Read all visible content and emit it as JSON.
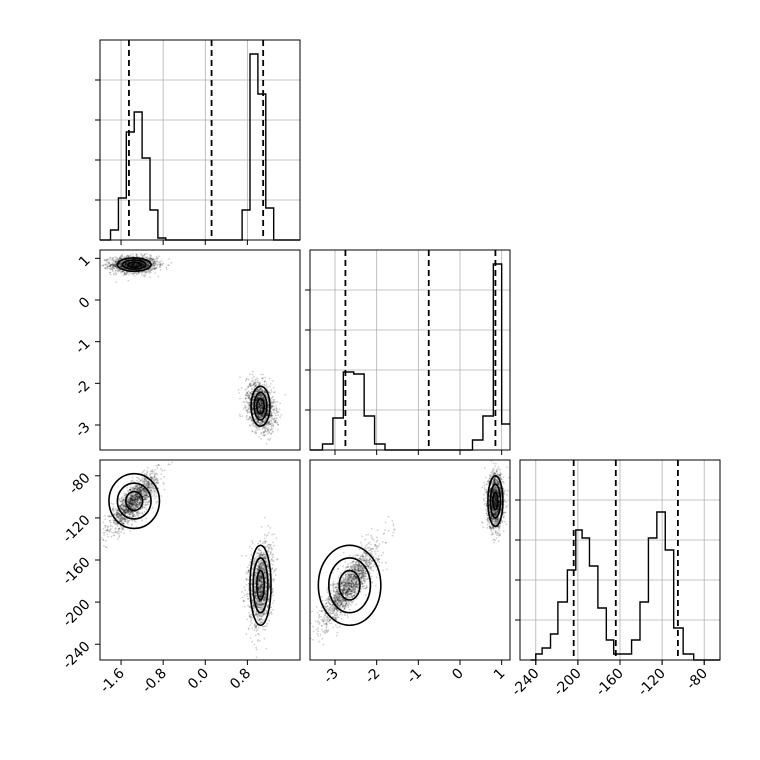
{
  "chart_data": [
    {
      "type": "histogram",
      "panel": "diag-1",
      "xlim": [
        -2.0,
        1.8
      ],
      "ylim": [
        0,
        1
      ],
      "xticks": [
        -1.6,
        -0.8,
        0.0,
        0.8
      ],
      "xtick_labels": [
        "-1.6",
        "-0.8",
        "0.0",
        "0.8"
      ],
      "bins": [
        [
          -2.0,
          0.0
        ],
        [
          -1.8,
          0.05
        ],
        [
          -1.65,
          0.21
        ],
        [
          -1.5,
          0.54
        ],
        [
          -1.35,
          0.64
        ],
        [
          -1.2,
          0.41
        ],
        [
          -1.05,
          0.15
        ],
        [
          -0.9,
          0.01
        ],
        [
          -0.75,
          0.0
        ],
        [
          0.55,
          0.0
        ],
        [
          0.7,
          0.15
        ],
        [
          0.85,
          0.93
        ],
        [
          1.0,
          0.73
        ],
        [
          1.15,
          0.16
        ],
        [
          1.3,
          0.0
        ],
        [
          1.8,
          0.0
        ]
      ],
      "quantiles": [
        -1.45,
        0.12,
        1.1
      ]
    },
    {
      "type": "histogram",
      "panel": "diag-2",
      "xlim": [
        -3.6,
        1.2
      ],
      "ylim": [
        0,
        1
      ],
      "xticks": [
        -3,
        -2,
        -1,
        0,
        1
      ],
      "xtick_labels": [
        "-3",
        "-2",
        "-1",
        "0",
        "1"
      ],
      "bins": [
        [
          -3.6,
          0.0
        ],
        [
          -3.3,
          0.03
        ],
        [
          -3.05,
          0.16
        ],
        [
          -2.8,
          0.39
        ],
        [
          -2.55,
          0.38
        ],
        [
          -2.3,
          0.17
        ],
        [
          -2.05,
          0.03
        ],
        [
          -1.8,
          0.0
        ],
        [
          0.05,
          0.0
        ],
        [
          0.3,
          0.05
        ],
        [
          0.55,
          0.17
        ],
        [
          0.8,
          0.93
        ],
        [
          1.0,
          0.13
        ],
        [
          1.2,
          0.13
        ]
      ],
      "quantiles": [
        -2.75,
        -0.75,
        0.85
      ]
    },
    {
      "type": "histogram",
      "panel": "diag-3",
      "xlim": [
        -255,
        -65
      ],
      "ylim": [
        0,
        1
      ],
      "xticks": [
        -240,
        -200,
        -160,
        -120,
        -80
      ],
      "xtick_labels": [
        "-240",
        "-200",
        "-160",
        "-120",
        "-80"
      ],
      "bins": [
        [
          -245,
          0.0
        ],
        [
          -240,
          0.03
        ],
        [
          -234,
          0.06
        ],
        [
          -226,
          0.13
        ],
        [
          -219,
          0.29
        ],
        [
          -210,
          0.45
        ],
        [
          -202,
          0.65
        ],
        [
          -196,
          0.61
        ],
        [
          -189,
          0.47
        ],
        [
          -181,
          0.26
        ],
        [
          -173,
          0.1
        ],
        [
          -166,
          0.03
        ],
        [
          -157,
          0.03
        ],
        [
          -149,
          0.1
        ],
        [
          -141,
          0.29
        ],
        [
          -133,
          0.61
        ],
        [
          -125,
          0.74
        ],
        [
          -117,
          0.55
        ],
        [
          -109,
          0.16
        ],
        [
          -100,
          0.03
        ],
        [
          -90,
          0.0
        ],
        [
          -65,
          0.0
        ]
      ],
      "quantiles": [
        -204,
        -164,
        -105
      ]
    },
    {
      "type": "scatter",
      "panel": "joint-2-1",
      "xlim": [
        -2.0,
        1.8
      ],
      "ylim": [
        -3.6,
        1.2
      ],
      "yticks": [
        1,
        0,
        -1,
        -2,
        -3
      ],
      "ytick_labels": [
        "1",
        "0",
        "-1",
        "-2",
        "-3"
      ],
      "clusters": [
        {
          "cx": -1.35,
          "cy": 0.85,
          "sx": 0.22,
          "sy": 0.1,
          "rho": 0.0,
          "n": 1500
        },
        {
          "cx": 1.05,
          "cy": -2.55,
          "sx": 0.13,
          "sy": 0.28,
          "rho": -0.3,
          "n": 1500
        }
      ],
      "contours": [
        {
          "cx": -1.35,
          "cy": 0.85,
          "rx": [
            0.32,
            0.22,
            0.12
          ],
          "ry": [
            0.16,
            0.11,
            0.06
          ]
        },
        {
          "cx": 1.05,
          "cy": -2.55,
          "rx": [
            0.18,
            0.12,
            0.07
          ],
          "ry": [
            0.48,
            0.33,
            0.18
          ]
        }
      ]
    },
    {
      "type": "scatter",
      "panel": "joint-3-1",
      "xlim": [
        -2.0,
        1.8
      ],
      "ylim": [
        -255,
        -65
      ],
      "yticks": [
        -80,
        -120,
        -160,
        -200,
        -240
      ],
      "ytick_labels": [
        "-80",
        "-120",
        "-160",
        "-200",
        "-240"
      ],
      "clusters": [
        {
          "cx": -1.35,
          "cy": -104,
          "sx": 0.22,
          "sy": 13,
          "rho": 0.8,
          "n": 1500
        },
        {
          "cx": 1.05,
          "cy": -184,
          "sx": 0.11,
          "sy": 19,
          "rho": 0.2,
          "n": 1500
        }
      ],
      "contours": [
        {
          "cx": -1.35,
          "cy": -104,
          "rx": [
            0.48,
            0.32,
            0.16
          ],
          "ry": [
            26,
            17,
            9
          ]
        },
        {
          "cx": 1.05,
          "cy": -184,
          "rx": [
            0.2,
            0.14,
            0.07
          ],
          "ry": [
            38,
            26,
            14
          ]
        }
      ]
    },
    {
      "type": "scatter",
      "panel": "joint-3-2",
      "xlim": [
        -3.6,
        1.2
      ],
      "ylim": [
        -255,
        -65
      ],
      "clusters": [
        {
          "cx": -2.65,
          "cy": -184,
          "sx": 0.33,
          "sy": 19,
          "rho": 0.85,
          "n": 1500
        },
        {
          "cx": 0.85,
          "cy": -104,
          "sx": 0.1,
          "sy": 13,
          "rho": 0.0,
          "n": 1500
        }
      ],
      "contours": [
        {
          "cx": -2.65,
          "cy": -184,
          "rx": [
            0.75,
            0.5,
            0.25
          ],
          "ry": [
            38,
            26,
            14
          ]
        },
        {
          "cx": 0.85,
          "cy": -104,
          "rx": [
            0.18,
            0.12,
            0.06
          ],
          "ry": [
            24,
            16,
            8
          ]
        }
      ]
    }
  ]
}
